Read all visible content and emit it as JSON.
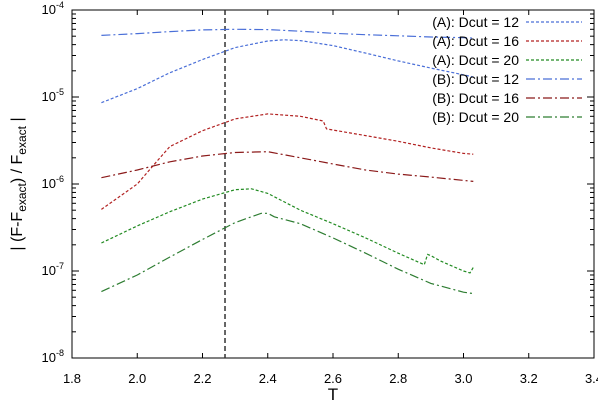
{
  "chart_data": {
    "type": "line",
    "xlabel": "T",
    "ylabel_parts": [
      "| (F-F",
      "exact",
      ") / F",
      "exact",
      " |"
    ],
    "xlim": [
      1.8,
      3.4
    ],
    "ylim": [
      1e-08,
      0.0001
    ],
    "yscale": "log",
    "x_ticks": [
      1.8,
      2.0,
      2.2,
      2.4,
      2.6,
      2.8,
      3.0,
      3.2,
      3.4
    ],
    "x_tick_labels": [
      "1.8",
      "2.0",
      "2.2",
      "2.4",
      "2.6",
      "2.8",
      "3.0",
      "3.2",
      "3.4"
    ],
    "y_ticks": [
      {
        "value": 1e-08,
        "base": "10",
        "exp": "-8"
      },
      {
        "value": 1e-07,
        "base": "10",
        "exp": "-7"
      },
      {
        "value": 1e-06,
        "base": "10",
        "exp": "-6"
      },
      {
        "value": 1e-05,
        "base": "10",
        "exp": "-5"
      },
      {
        "value": 0.0001,
        "base": "10",
        "exp": "-4"
      }
    ],
    "vline_x": 2.269,
    "legend_position": "top-right",
    "series": [
      {
        "name": "(A): Dcut = 12",
        "color": "#4a6fd8",
        "dash": "3,2",
        "x": [
          1.89,
          2.0,
          2.1,
          2.2,
          2.3,
          2.4,
          2.45,
          2.5,
          2.6,
          2.7,
          2.8,
          2.9,
          3.0,
          3.03
        ],
        "y": [
          8.6e-06,
          1.25e-05,
          1.9e-05,
          2.7e-05,
          3.7e-05,
          4.4e-05,
          4.55e-05,
          4.45e-05,
          3.9e-05,
          3.2e-05,
          2.6e-05,
          2.15e-05,
          1.8e-05,
          1.7e-05
        ]
      },
      {
        "name": "(A): Dcut = 16",
        "color": "#b22222",
        "dash": "3,2",
        "x": [
          1.89,
          2.0,
          2.05,
          2.1,
          2.2,
          2.3,
          2.4,
          2.5,
          2.57,
          2.58,
          2.7,
          2.8,
          2.9,
          3.0,
          3.03
        ],
        "y": [
          5.1e-07,
          1e-06,
          1.65e-06,
          2.7e-06,
          4.1e-06,
          5.6e-06,
          6.4e-06,
          6e-06,
          5.3e-06,
          4.3e-06,
          3.6e-06,
          3.1e-06,
          2.6e-06,
          2.25e-06,
          2.2e-06
        ]
      },
      {
        "name": "(A): Dcut = 20",
        "color": "#228b22",
        "dash": "3,2",
        "x": [
          1.89,
          2.0,
          2.1,
          2.2,
          2.3,
          2.35,
          2.4,
          2.5,
          2.6,
          2.7,
          2.8,
          2.88,
          2.89,
          2.9,
          2.93,
          3.0,
          3.02,
          3.03
        ],
        "y": [
          2.1e-07,
          3.3e-07,
          4.8e-07,
          6.7e-07,
          8.6e-07,
          8.8e-07,
          7.8e-07,
          5e-07,
          3.5e-07,
          2.4e-07,
          1.6e-07,
          1.18e-07,
          1.55e-07,
          1.5e-07,
          1.3e-07,
          1e-07,
          9.5e-08,
          1.1e-07
        ]
      },
      {
        "name": "(B): Dcut = 12",
        "color": "#4a6fd8",
        "dash": "9,3,2,3",
        "x": [
          1.89,
          2.0,
          2.1,
          2.2,
          2.3,
          2.4,
          2.5,
          2.6,
          2.7,
          2.8,
          2.9,
          3.0,
          3.03
        ],
        "y": [
          5.1e-05,
          5.35e-05,
          5.65e-05,
          5.9e-05,
          6e-05,
          5.95e-05,
          5.7e-05,
          5.4e-05,
          5.2e-05,
          5.05e-05,
          4.9e-05,
          4.8e-05,
          4.75e-05
        ]
      },
      {
        "name": "(B): Dcut = 16",
        "color": "#8b1a1a",
        "dash": "9,3,2,3",
        "x": [
          1.89,
          2.0,
          2.1,
          2.2,
          2.3,
          2.4,
          2.5,
          2.6,
          2.7,
          2.8,
          2.9,
          3.0,
          3.03
        ],
        "y": [
          1.18e-06,
          1.45e-06,
          1.8e-06,
          2.1e-06,
          2.3e-06,
          2.35e-06,
          2e-06,
          1.7e-06,
          1.45e-06,
          1.3e-06,
          1.2e-06,
          1.1e-06,
          1.07e-06
        ]
      },
      {
        "name": "(B): Dcut = 20",
        "color": "#2e7d32",
        "dash": "9,3,2,3",
        "x": [
          1.89,
          2.0,
          2.1,
          2.2,
          2.3,
          2.38,
          2.4,
          2.42,
          2.5,
          2.6,
          2.7,
          2.8,
          2.9,
          3.0,
          3.03
        ],
        "y": [
          5.8e-08,
          9e-08,
          1.45e-07,
          2.3e-07,
          3.6e-07,
          4.6e-07,
          4.6e-07,
          4.2e-07,
          3.5e-07,
          2.4e-07,
          1.6e-07,
          1.05e-07,
          7.2e-08,
          5.7e-08,
          5.5e-08
        ]
      }
    ]
  }
}
